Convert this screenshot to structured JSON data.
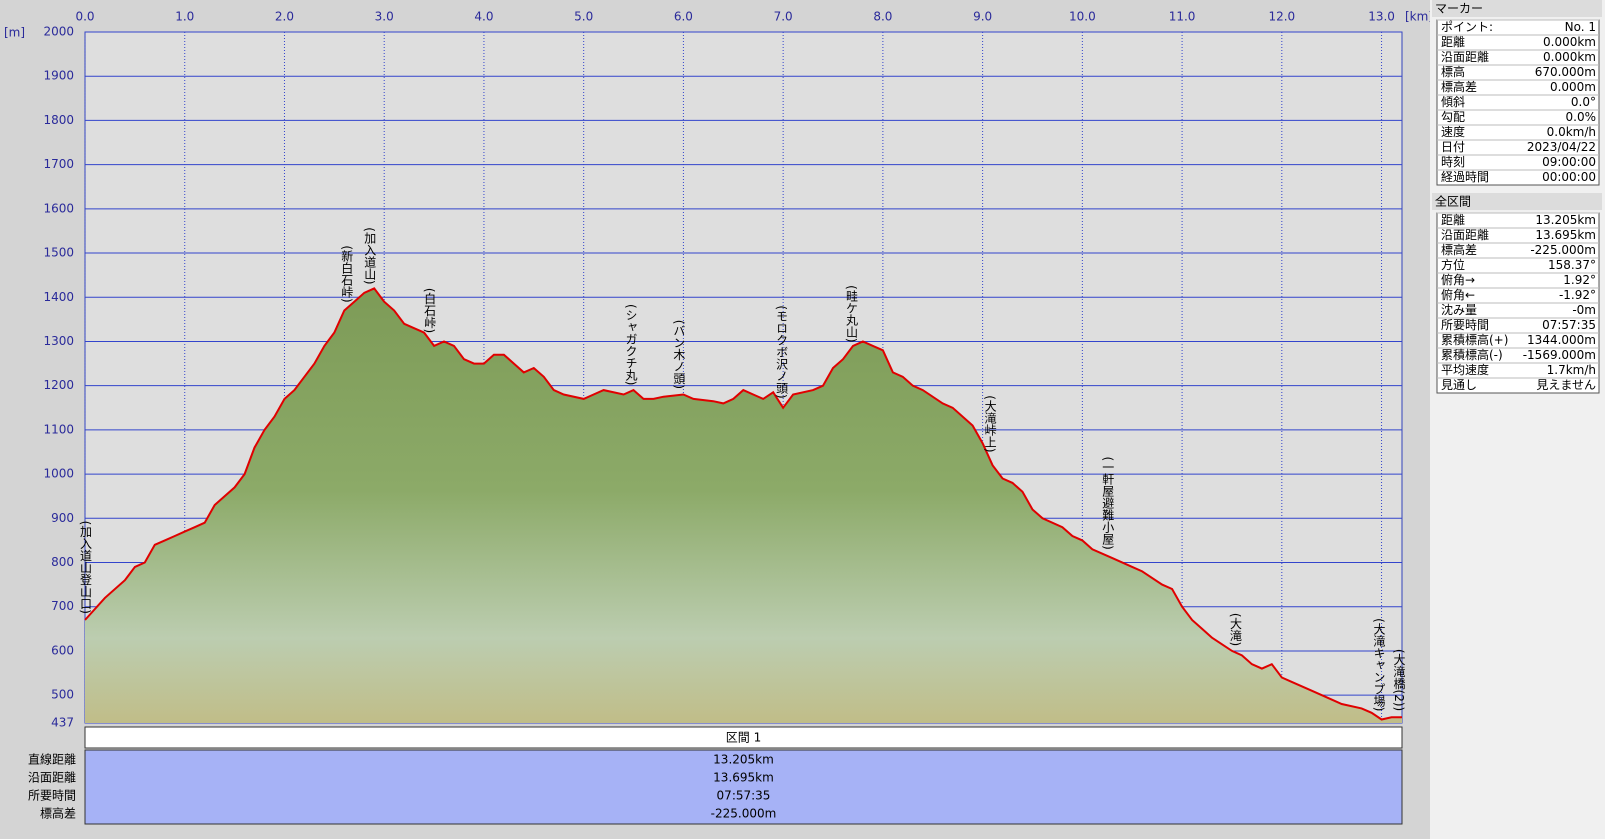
{
  "chart_data": {
    "type": "line",
    "x_label": "[km]",
    "y_label": "[m]",
    "xlim": [
      0,
      13.205
    ],
    "ylim": [
      437,
      2000
    ],
    "xticks": [
      {
        "value": 0,
        "label": "0.0"
      },
      {
        "value": 1,
        "label": "1.0"
      },
      {
        "value": 2,
        "label": "2.0"
      },
      {
        "value": 3,
        "label": "3.0"
      },
      {
        "value": 4,
        "label": "4.0"
      },
      {
        "value": 5,
        "label": "5.0"
      },
      {
        "value": 6,
        "label": "6.0"
      },
      {
        "value": 7,
        "label": "7.0"
      },
      {
        "value": 8,
        "label": "8.0"
      },
      {
        "value": 9,
        "label": "9.0"
      },
      {
        "value": 10,
        "label": "10.0"
      },
      {
        "value": 11,
        "label": "11.0"
      },
      {
        "value": 12,
        "label": "12.0"
      },
      {
        "value": 13,
        "label": "13.0"
      }
    ],
    "yticks": [
      437,
      500,
      600,
      700,
      800,
      900,
      1000,
      1100,
      1200,
      1300,
      1400,
      1500,
      1600,
      1700,
      1800,
      1900,
      2000
    ],
    "grid": true,
    "color": "#e00000",
    "x": [
      0,
      0.2,
      0.4,
      0.5,
      0.6,
      0.7,
      0.8,
      0.9,
      1.0,
      1.1,
      1.2,
      1.3,
      1.4,
      1.5,
      1.6,
      1.7,
      1.8,
      1.9,
      2.0,
      2.1,
      2.2,
      2.3,
      2.4,
      2.5,
      2.6,
      2.7,
      2.8,
      2.9,
      3.0,
      3.1,
      3.2,
      3.3,
      3.4,
      3.5,
      3.6,
      3.7,
      3.8,
      3.9,
      4.0,
      4.1,
      4.2,
      4.3,
      4.4,
      4.5,
      4.6,
      4.7,
      4.8,
      5.0,
      5.1,
      5.2,
      5.4,
      5.5,
      5.6,
      5.7,
      5.8,
      6.0,
      6.1,
      6.3,
      6.4,
      6.5,
      6.6,
      6.7,
      6.8,
      6.9,
      7.0,
      7.1,
      7.3,
      7.4,
      7.5,
      7.6,
      7.7,
      7.8,
      7.9,
      8.0,
      8.1,
      8.2,
      8.3,
      8.4,
      8.6,
      8.7,
      8.9,
      9.0,
      9.1,
      9.2,
      9.3,
      9.4,
      9.5,
      9.6,
      9.8,
      9.9,
      10.0,
      10.1,
      10.3,
      10.5,
      10.6,
      10.8,
      10.9,
      11.0,
      11.1,
      11.2,
      11.3,
      11.5,
      11.6,
      11.7,
      11.8,
      11.9,
      12.0,
      12.1,
      12.3,
      12.5,
      12.6,
      12.8,
      12.9,
      13.0,
      13.1,
      13.205
    ],
    "values": [
      670,
      720,
      760,
      790,
      800,
      840,
      850,
      860,
      870,
      880,
      890,
      930,
      950,
      970,
      1000,
      1060,
      1100,
      1130,
      1170,
      1190,
      1220,
      1250,
      1290,
      1320,
      1370,
      1390,
      1410,
      1420,
      1390,
      1370,
      1340,
      1330,
      1320,
      1290,
      1300,
      1290,
      1260,
      1250,
      1250,
      1270,
      1270,
      1250,
      1230,
      1240,
      1220,
      1190,
      1180,
      1170,
      1180,
      1190,
      1180,
      1190,
      1170,
      1170,
      1175,
      1180,
      1170,
      1165,
      1160,
      1170,
      1190,
      1180,
      1170,
      1185,
      1150,
      1180,
      1190,
      1200,
      1240,
      1260,
      1290,
      1300,
      1290,
      1280,
      1230,
      1220,
      1200,
      1190,
      1160,
      1150,
      1110,
      1070,
      1020,
      990,
      980,
      960,
      920,
      900,
      880,
      860,
      850,
      830,
      810,
      790,
      780,
      750,
      740,
      700,
      670,
      650,
      630,
      600,
      590,
      570,
      560,
      570,
      540,
      530,
      510,
      490,
      480,
      470,
      460,
      445,
      450,
      450
    ],
    "annotations": [
      {
        "text": "(加入道山登山口)",
        "x": 0
      },
      {
        "text": "(新白石峠)",
        "x": 2.62
      },
      {
        "text": "(加入道山)",
        "x": 2.85
      },
      {
        "text": "(白石峠)",
        "x": 3.45
      },
      {
        "text": "(シャガクチ丸)",
        "x": 5.47
      },
      {
        "text": "(バン木ノ頭)",
        "x": 5.95
      },
      {
        "text": "(モロクボ沢ノ頭)",
        "x": 6.98
      },
      {
        "text": "(畦ケ丸山)",
        "x": 7.68
      },
      {
        "text": "(大滝峠上)",
        "x": 9.07
      },
      {
        "text": "(一軒屋避難小屋)",
        "x": 10.25
      },
      {
        "text": "(大滝)",
        "x": 11.53
      },
      {
        "text": "(大滝キャンプ場)",
        "x": 12.97
      },
      {
        "text": "(大滝橋(2))",
        "x": 13.17
      }
    ]
  },
  "segment_table": {
    "title": "区間 1",
    "rows": [
      {
        "label": "直線距離",
        "value": "13.205km"
      },
      {
        "label": "沿面距離",
        "value": "13.695km"
      },
      {
        "label": "所要時間",
        "value": "07:57:35"
      },
      {
        "label": "標高差",
        "value": "-225.000m"
      }
    ]
  },
  "panel": {
    "marker": {
      "title": "マーカー",
      "rows": [
        [
          "ポイント:",
          "No. 1"
        ],
        [
          "距離",
          "0.000km"
        ],
        [
          "沿面距離",
          "0.000km"
        ],
        [
          "標高",
          "670.000m"
        ],
        [
          "標高差",
          "0.000m"
        ],
        [
          "傾斜",
          "0.0°"
        ],
        [
          "勾配",
          "0.0%"
        ],
        [
          "速度",
          "0.0km/h"
        ],
        [
          "日付",
          "2023/04/22"
        ],
        [
          "時刻",
          "09:00:00"
        ],
        [
          "経過時間",
          "00:00:00"
        ]
      ]
    },
    "total": {
      "title": "全区間",
      "rows": [
        [
          "距離",
          "13.205km"
        ],
        [
          "沿面距離",
          "13.695km"
        ],
        [
          "標高差",
          "-225.000m"
        ],
        [
          "方位",
          "158.37°"
        ],
        [
          "俯角→",
          "1.92°"
        ],
        [
          "俯角←",
          "-1.92°"
        ],
        [
          "沈み量",
          "-0m"
        ],
        [
          "所要時間",
          "07:57:35"
        ],
        [
          "累積標高(+)",
          "1344.000m"
        ],
        [
          "累積標高(-)",
          "-1569.000m"
        ],
        [
          "平均速度",
          "1.7km/h"
        ],
        [
          "見通し",
          "見えません"
        ]
      ]
    }
  }
}
